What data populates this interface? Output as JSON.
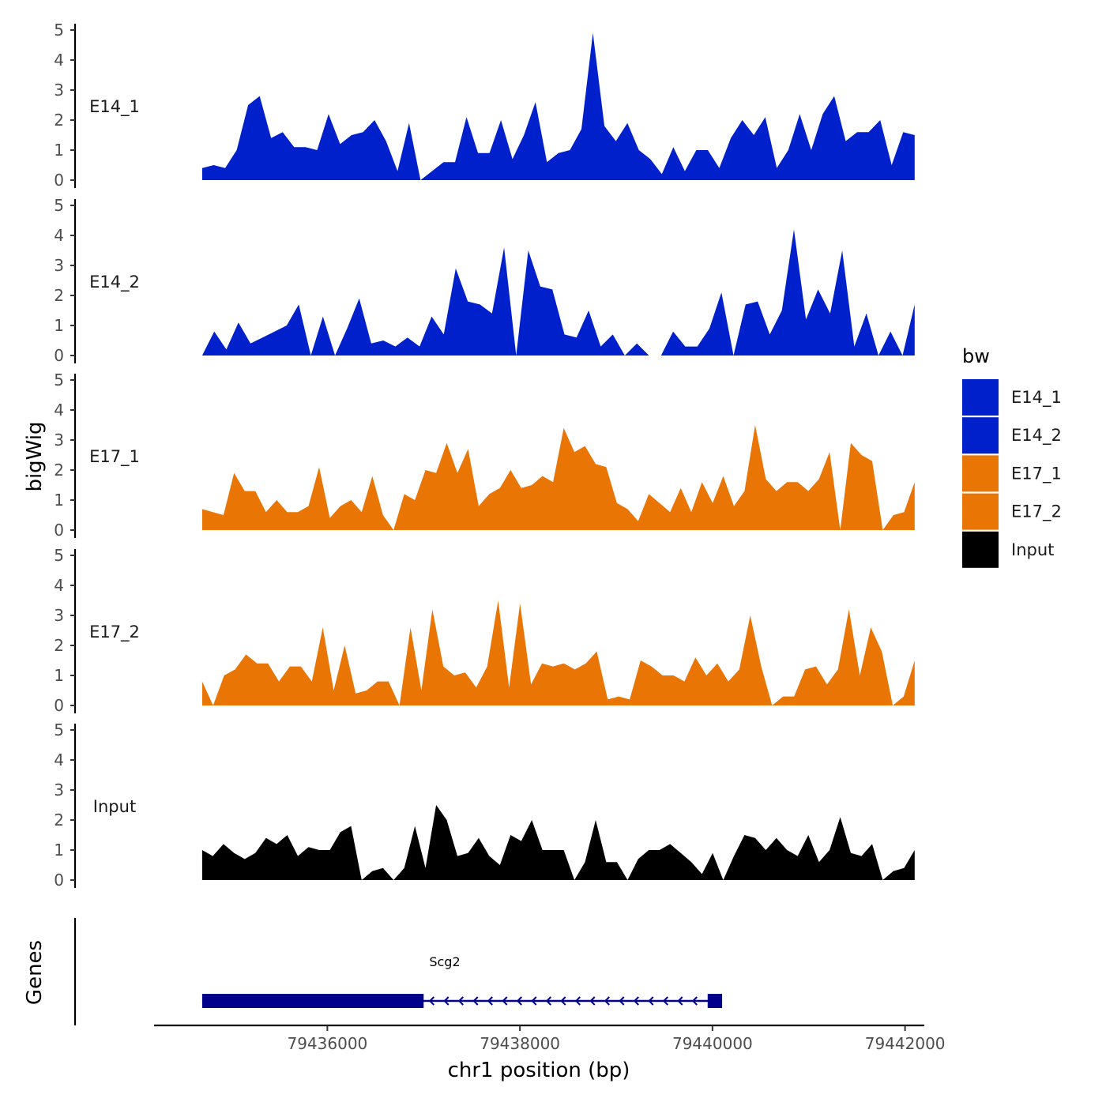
{
  "chart_data": {
    "type": "area",
    "chromosome": "chr1",
    "xlabel": "chr1 position (bp)",
    "ylabel": "bigWig",
    "genes_label": "Genes",
    "xlim": [
      79434200,
      79442200
    ],
    "data_x_range": [
      79434700,
      79442100
    ],
    "ylim": [
      0,
      5
    ],
    "yticks": [
      0,
      1,
      2,
      3,
      4,
      5
    ],
    "xticks": [
      79436000,
      79438000,
      79440000,
      79442000
    ],
    "xtick_labels": [
      "79436000",
      "79438000",
      "79440000",
      "79442000"
    ],
    "legend": {
      "title": "bw",
      "entries": [
        {
          "label": "E14_1",
          "color": "#0020CC"
        },
        {
          "label": "E14_2",
          "color": "#0020CC"
        },
        {
          "label": "E17_1",
          "color": "#E87504"
        },
        {
          "label": "E17_2",
          "color": "#E87504"
        },
        {
          "label": "Input",
          "color": "#000000"
        }
      ]
    },
    "tracks": [
      {
        "name": "E14_1",
        "color": "#0020CC",
        "values": [
          0.4,
          0.5,
          0.4,
          1.0,
          2.5,
          2.8,
          1.4,
          1.6,
          1.1,
          1.1,
          1.0,
          2.2,
          1.2,
          1.5,
          1.6,
          2.0,
          1.3,
          0.3,
          1.9,
          0.0,
          0.3,
          0.6,
          0.6,
          2.1,
          0.9,
          0.9,
          2.0,
          0.7,
          1.5,
          2.6,
          0.6,
          0.9,
          1.0,
          1.7,
          4.9,
          1.8,
          1.3,
          1.9,
          1.0,
          0.7,
          0.2,
          1.1,
          0.3,
          1.0,
          1.0,
          0.4,
          1.4,
          2.0,
          1.5,
          2.1,
          0.4,
          1.0,
          2.2,
          1.0,
          2.2,
          2.8,
          1.3,
          1.6,
          1.6,
          2.0,
          0.5,
          1.6,
          1.5
        ]
      },
      {
        "name": "E14_2",
        "color": "#0020CC",
        "values": [
          0.0,
          0.8,
          0.2,
          1.1,
          0.4,
          0.6,
          0.8,
          1.0,
          1.7,
          0.0,
          1.3,
          0.0,
          0.9,
          1.9,
          0.4,
          0.5,
          0.3,
          0.6,
          0.3,
          1.3,
          0.7,
          2.9,
          1.8,
          1.7,
          1.4,
          3.6,
          0.0,
          3.5,
          2.3,
          2.2,
          0.7,
          0.6,
          1.5,
          0.3,
          0.7,
          0.0,
          0.4,
          0.0,
          0.0,
          0.8,
          0.3,
          0.3,
          0.9,
          2.1,
          0.0,
          1.7,
          1.8,
          0.7,
          1.5,
          4.2,
          1.2,
          2.2,
          1.4,
          3.5,
          0.3,
          1.4,
          0.0,
          0.8,
          0.0,
          1.7
        ]
      },
      {
        "name": "E17_1",
        "color": "#E87504",
        "values": [
          0.7,
          0.6,
          0.5,
          1.9,
          1.3,
          1.3,
          0.6,
          1.0,
          0.6,
          0.6,
          0.8,
          2.1,
          0.4,
          0.8,
          1.0,
          0.6,
          1.8,
          0.5,
          0.0,
          1.2,
          1.0,
          2.0,
          1.9,
          2.9,
          1.9,
          2.7,
          0.8,
          1.2,
          1.4,
          2.0,
          1.4,
          1.5,
          1.8,
          1.6,
          3.4,
          2.6,
          2.8,
          2.2,
          2.1,
          0.9,
          0.7,
          0.3,
          1.2,
          0.9,
          0.6,
          1.4,
          0.6,
          1.6,
          0.9,
          1.8,
          0.8,
          1.3,
          3.5,
          1.7,
          1.3,
          1.6,
          1.6,
          1.3,
          1.7,
          2.6,
          0.0,
          2.9,
          2.5,
          2.3,
          0.0,
          0.5,
          0.6,
          1.6
        ]
      },
      {
        "name": "E17_2",
        "color": "#E87504",
        "values": [
          0.8,
          0.0,
          1.0,
          1.2,
          1.7,
          1.4,
          1.4,
          0.8,
          1.3,
          1.3,
          0.8,
          2.6,
          0.5,
          2.0,
          0.4,
          0.5,
          0.8,
          0.8,
          0.0,
          2.6,
          0.5,
          3.2,
          1.3,
          1.0,
          1.1,
          0.6,
          1.3,
          3.5,
          0.6,
          3.4,
          0.7,
          1.4,
          1.3,
          1.4,
          1.2,
          1.4,
          1.8,
          0.2,
          0.3,
          0.2,
          1.5,
          1.3,
          1.0,
          1.0,
          0.8,
          1.6,
          1.0,
          1.4,
          0.8,
          1.2,
          3.0,
          1.3,
          0.0,
          0.3,
          0.3,
          1.2,
          1.3,
          0.7,
          1.2,
          3.2,
          1.0,
          2.6,
          1.8,
          0.0,
          0.3,
          1.5
        ]
      },
      {
        "name": "Input",
        "color": "#000000",
        "values": [
          1.0,
          0.8,
          1.2,
          0.9,
          0.7,
          0.9,
          1.4,
          1.2,
          1.5,
          0.8,
          1.1,
          1.0,
          1.0,
          1.6,
          1.8,
          0.0,
          0.3,
          0.4,
          0.0,
          0.4,
          1.8,
          0.4,
          2.5,
          2.0,
          0.8,
          0.9,
          1.4,
          0.8,
          0.5,
          1.5,
          1.3,
          2.0,
          1.0,
          1.0,
          1.0,
          0.0,
          0.6,
          2.0,
          0.6,
          0.6,
          0.0,
          0.7,
          1.0,
          1.0,
          1.2,
          0.9,
          0.6,
          0.2,
          0.9,
          0.0,
          0.8,
          1.5,
          1.4,
          1.0,
          1.4,
          1.0,
          0.8,
          1.5,
          0.6,
          1.0,
          2.1,
          0.9,
          0.8,
          1.2,
          0.0,
          0.3,
          0.4,
          1.0
        ]
      }
    ],
    "genes": [
      {
        "name": "Scg2",
        "strand": "-",
        "color": "#00008B",
        "start": 79434700,
        "end": 79440100,
        "exons": [
          [
            79434700,
            79437000
          ],
          [
            79439950,
            79440100
          ]
        ]
      }
    ]
  }
}
